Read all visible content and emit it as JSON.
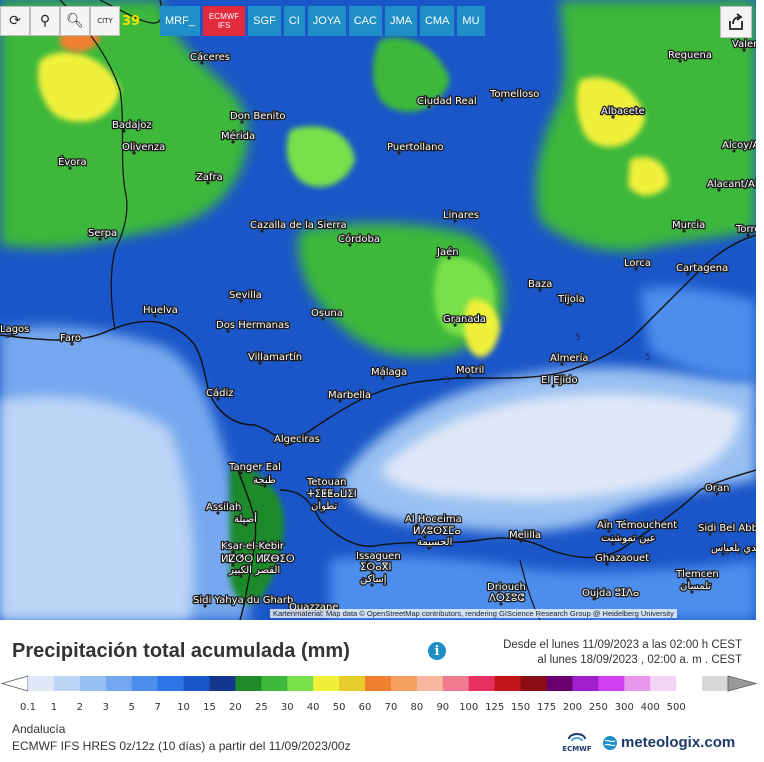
{
  "toolbar": {
    "city_label": "CITY",
    "hour": "39"
  },
  "models": [
    "MRF_",
    "SGF",
    "CI",
    "JOYA",
    "CAC",
    "JMA",
    "CMA",
    "MU"
  ],
  "active_model": {
    "line1": "ECMWF",
    "line2": "IFS"
  },
  "map": {
    "attribution": "Kartenmaterial: Map data © OpenStreetMap contributors, rendering GIScience Research Group @ Heidelberg University",
    "cities": [
      {
        "name": "Cáceres"
      },
      {
        "name": "Tomelloso"
      },
      {
        "name": "Requena"
      },
      {
        "name": "Valencia"
      },
      {
        "name": "Badajoz"
      },
      {
        "name": "Don Benito"
      },
      {
        "name": "Ciudad Real"
      },
      {
        "name": "Albacete"
      },
      {
        "name": "Mérida"
      },
      {
        "name": "Olivenza"
      },
      {
        "name": "Puertollano"
      },
      {
        "name": "Alcoy/Alcoi"
      },
      {
        "name": "Évora"
      },
      {
        "name": "Zafra"
      },
      {
        "name": "Alacant/Alicante"
      },
      {
        "name": "Cazalla de la Sierra"
      },
      {
        "name": "Linares"
      },
      {
        "name": "Serpa"
      },
      {
        "name": "Córdoba"
      },
      {
        "name": "Jaén"
      },
      {
        "name": "Murcia"
      },
      {
        "name": "Torrevieja"
      },
      {
        "name": "Lorca"
      },
      {
        "name": "Cartagena"
      },
      {
        "name": "Baza"
      },
      {
        "name": "Sevilla"
      },
      {
        "name": "Tíjola"
      },
      {
        "name": "Huelva"
      },
      {
        "name": "Osuna"
      },
      {
        "name": "Dos Hermanas"
      },
      {
        "name": "Granada"
      },
      {
        "name": "Lagos"
      },
      {
        "name": "Faro"
      },
      {
        "name": "Almería"
      },
      {
        "name": "Villamartín"
      },
      {
        "name": "Málaga"
      },
      {
        "name": "Motril"
      },
      {
        "name": "El Ejido"
      },
      {
        "name": "Cádiz"
      },
      {
        "name": "Marbella"
      },
      {
        "name": "Algeciras"
      },
      {
        "name": "Tanger Eal"
      },
      {
        "name": "طنجة"
      },
      {
        "name": "Tetouan"
      },
      {
        "name": "ⵜⵉⵟⵟⴰⵡⵉⵏ"
      },
      {
        "name": "تطوان"
      },
      {
        "name": "Assilah"
      },
      {
        "name": "أصيلة"
      },
      {
        "name": "Oran"
      },
      {
        "name": "Al Hoceima"
      },
      {
        "name": "ⵍⵃⵓⵙⵉⵎⴰ"
      },
      {
        "name": "الحسيمة"
      },
      {
        "name": "Melilla"
      },
      {
        "name": "Aïn Témouchent"
      },
      {
        "name": "عين تموشنت"
      },
      {
        "name": "Sidi Bel Abbès"
      },
      {
        "name": "سيدي بلعباس"
      },
      {
        "name": "Ksar-el-Kebir"
      },
      {
        "name": "ⵍⵇⵚⵔ ⵍⴽⴱⵉⵔ"
      },
      {
        "name": "القصر الكبير"
      },
      {
        "name": "Issaguen"
      },
      {
        "name": "ⵉⵙⴰⴳⵏ"
      },
      {
        "name": "إساكن"
      },
      {
        "name": "Ghazaouet"
      },
      {
        "name": "Tlemcen"
      },
      {
        "name": "تلمسان"
      },
      {
        "name": "Driouch"
      },
      {
        "name": "ⴷⵔⵉⵓⵛ"
      },
      {
        "name": "Oujda ⵓⵊⴷⴰ"
      },
      {
        "name": "Sidi Yahya du Gharb"
      },
      {
        "name": "Ouazzane"
      }
    ],
    "contour_label": "5"
  },
  "legend": {
    "title": "Precipitación total acumulada (mm)",
    "info_icon": "info-icon",
    "period_line1": "Desde el lunes 11/09/2023 a  las 02:00 h  CEST",
    "period_line2": "al lunes 18/09/2023 , 02:00 a. m . CEST",
    "labels": [
      "0.1",
      "1",
      "2",
      "3",
      "5",
      "7",
      "10",
      "15",
      "20",
      "25",
      "30",
      "40",
      "50",
      "60",
      "70",
      "80",
      "90",
      "100",
      "125",
      "150",
      "175",
      "200",
      "250",
      "300",
      "400",
      "500"
    ],
    "colors": [
      "#e0e8f8",
      "#bcd4f6",
      "#98c0f2",
      "#74a8ee",
      "#4d8eec",
      "#2d74e6",
      "#1a56c8",
      "#143890",
      "#1f8a2a",
      "#3cb83a",
      "#78e04a",
      "#f0f03a",
      "#e6cc2c",
      "#f08030",
      "#f6a060",
      "#f8b8a0",
      "#f07a90",
      "#e83060",
      "#c01818",
      "#8a0c14",
      "#6a0070",
      "#a020d0",
      "#d040f0",
      "#e898ec",
      "#f4d4f4",
      "#ffffff",
      "#d8d8d8"
    ]
  },
  "footer": {
    "region": "Andalucía",
    "model_run": "ECMWF IFS HRES 0z/12z (10 días) a partir del 11/09/2023/00z",
    "ecmwf_logo_text": "ECMWF",
    "brand": "meteologix.com"
  }
}
